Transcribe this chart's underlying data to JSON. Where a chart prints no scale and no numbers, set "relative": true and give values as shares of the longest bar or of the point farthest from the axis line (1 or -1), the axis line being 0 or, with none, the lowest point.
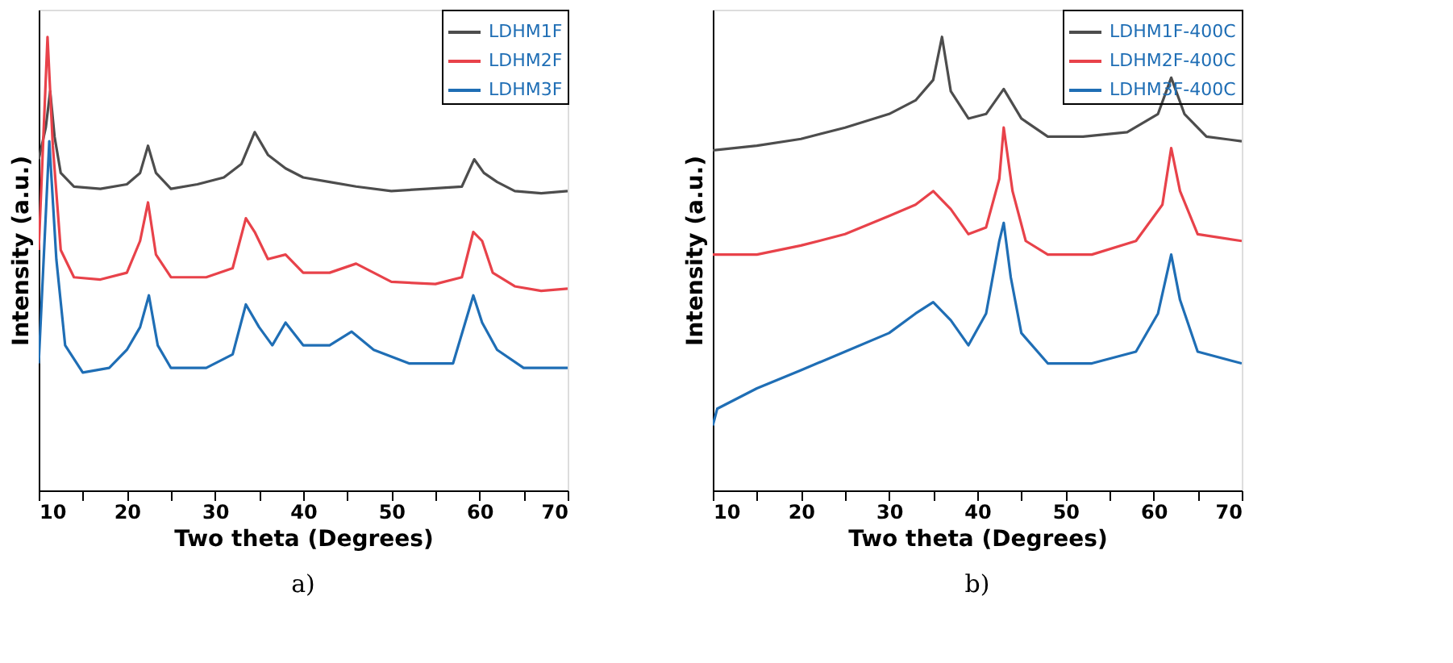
{
  "chart_data": [
    {
      "type": "line",
      "xlabel": "Two theta (Degrees)",
      "ylabel": "Intensity (a.u.)",
      "relative": true,
      "xlim": [
        10,
        70
      ],
      "xticks": [
        10,
        {
          "value": 15,
          "label": null
        },
        20,
        {
          "value": 25,
          "label": null
        },
        30,
        {
          "value": 35,
          "label": null
        },
        40,
        {
          "value": 45,
          "label": null
        },
        50,
        {
          "value": 55,
          "label": null
        },
        60,
        {
          "value": 65,
          "label": null
        },
        70
      ],
      "tick_labels": "x",
      "grid": false,
      "legend": "top right",
      "marker": "none",
      "line_style": "solid",
      "annotations": [
        "a)"
      ],
      "series": [
        {
          "name": "LDHM1F",
          "color": "#4d4d4d",
          "x": [
            10,
            10.8,
            11.3,
            11.8,
            12.5,
            14,
            17,
            20,
            21.5,
            22.4,
            23.3,
            25,
            28,
            31,
            33,
            34.5,
            36,
            38,
            40,
            43,
            46,
            50,
            54,
            58,
            59.4,
            60.5,
            62,
            64,
            67,
            70
          ],
          "values": [
            0.73,
            0.8,
            0.88,
            0.78,
            0.7,
            0.67,
            0.665,
            0.675,
            0.7,
            0.76,
            0.7,
            0.665,
            0.675,
            0.69,
            0.72,
            0.79,
            0.74,
            0.71,
            0.69,
            0.68,
            0.67,
            0.66,
            0.665,
            0.67,
            0.73,
            0.7,
            0.68,
            0.66,
            0.655,
            0.66
          ]
        },
        {
          "name": "LDHM2F",
          "color": "#e8424a",
          "x": [
            10,
            11,
            11.6,
            12.5,
            14,
            17,
            20,
            21.5,
            22.4,
            23.3,
            25,
            29,
            32,
            33.5,
            34.5,
            36,
            38,
            40,
            43,
            46,
            50,
            55,
            58,
            59.3,
            60.3,
            61.5,
            64,
            67,
            70
          ],
          "values": [
            0.53,
            1.0,
            0.76,
            0.53,
            0.47,
            0.465,
            0.48,
            0.55,
            0.635,
            0.52,
            0.47,
            0.47,
            0.49,
            0.6,
            0.57,
            0.51,
            0.52,
            0.48,
            0.48,
            0.5,
            0.46,
            0.455,
            0.47,
            0.57,
            0.55,
            0.48,
            0.45,
            0.44,
            0.445
          ]
        },
        {
          "name": "LDHM3F",
          "color": "#1f6eb5",
          "x": [
            10,
            11.2,
            12,
            13,
            15,
            18,
            20,
            21.5,
            22.5,
            23.5,
            25,
            29,
            32,
            33.5,
            35,
            36.5,
            38,
            40,
            43,
            45.5,
            48,
            52,
            57,
            59.3,
            60.3,
            62,
            65,
            70
          ],
          "values": [
            0.28,
            0.77,
            0.51,
            0.32,
            0.26,
            0.27,
            0.31,
            0.36,
            0.43,
            0.32,
            0.27,
            0.27,
            0.3,
            0.41,
            0.36,
            0.32,
            0.37,
            0.32,
            0.32,
            0.35,
            0.31,
            0.28,
            0.28,
            0.43,
            0.37,
            0.31,
            0.27,
            0.27
          ]
        }
      ]
    },
    {
      "type": "line",
      "xlabel": "Two theta (Degrees)",
      "ylabel": "Intensity (a.u.)",
      "relative": true,
      "xlim": [
        10,
        70
      ],
      "xticks": [
        10,
        {
          "value": 15,
          "label": null
        },
        20,
        {
          "value": 25,
          "label": null
        },
        30,
        {
          "value": 35,
          "label": null
        },
        40,
        {
          "value": 45,
          "label": null
        },
        50,
        {
          "value": 55,
          "label": null
        },
        60,
        {
          "value": 65,
          "label": null
        },
        70
      ],
      "tick_labels": "x",
      "grid": false,
      "legend": "top right",
      "marker": "none",
      "line_style": "solid",
      "annotations": [
        "b)"
      ],
      "series": [
        {
          "name": "LDHM1F-400C",
          "color": "#4d4d4d",
          "x": [
            10,
            15,
            20,
            25,
            30,
            33,
            35,
            36,
            37,
            39,
            41,
            43,
            45,
            48,
            52,
            57,
            60.5,
            62,
            63.5,
            66,
            70
          ],
          "values": [
            0.75,
            0.76,
            0.775,
            0.8,
            0.83,
            0.86,
            0.905,
            1.0,
            0.88,
            0.82,
            0.83,
            0.885,
            0.82,
            0.78,
            0.78,
            0.79,
            0.83,
            0.91,
            0.83,
            0.78,
            0.77
          ]
        },
        {
          "name": "LDHM2F-400C",
          "color": "#e8424a",
          "x": [
            10,
            15,
            20,
            25,
            30,
            33,
            35,
            37,
            39,
            41,
            42.5,
            43,
            44,
            45.5,
            48,
            53,
            58,
            61,
            62,
            63,
            65,
            70
          ],
          "values": [
            0.52,
            0.52,
            0.54,
            0.565,
            0.605,
            0.63,
            0.66,
            0.62,
            0.565,
            0.58,
            0.687,
            0.8,
            0.66,
            0.55,
            0.52,
            0.52,
            0.55,
            0.63,
            0.755,
            0.66,
            0.565,
            0.55
          ]
        },
        {
          "name": "LDHM3F-400C",
          "color": "#1f6eb5",
          "x": [
            10,
            10.5,
            15,
            20,
            25,
            30,
            33,
            35,
            37,
            39,
            41,
            42.5,
            43,
            43.8,
            45,
            48,
            53,
            58,
            60.5,
            62,
            63,
            65,
            70
          ],
          "values": [
            0.143,
            0.18,
            0.225,
            0.265,
            0.306,
            0.347,
            0.39,
            0.415,
            0.375,
            0.32,
            0.39,
            0.55,
            0.59,
            0.47,
            0.347,
            0.28,
            0.28,
            0.306,
            0.39,
            0.52,
            0.42,
            0.306,
            0.28
          ]
        }
      ]
    }
  ]
}
